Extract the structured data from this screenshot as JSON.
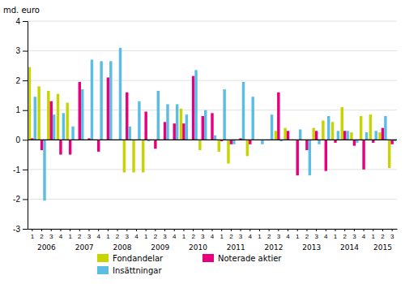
{
  "chart_data": {
    "type": "bar",
    "ylabel": "md. euro",
    "categories": [
      "1",
      "2",
      "3",
      "4",
      "1",
      "2",
      "3",
      "4",
      "1",
      "2",
      "3",
      "4",
      "1",
      "2",
      "3",
      "4",
      "1",
      "2",
      "3",
      "4",
      "1",
      "2",
      "3",
      "4",
      "1",
      "2",
      "3",
      "4",
      "1",
      "2",
      "3",
      "4",
      "1",
      "2",
      "3",
      "4",
      "1",
      "2",
      "3"
    ],
    "category_groups": [
      2006,
      2006,
      2006,
      2006,
      2007,
      2007,
      2007,
      2007,
      2008,
      2008,
      2008,
      2008,
      2009,
      2009,
      2009,
      2009,
      2010,
      2010,
      2010,
      2010,
      2011,
      2011,
      2011,
      2011,
      2012,
      2012,
      2012,
      2012,
      2013,
      2013,
      2013,
      2013,
      2014,
      2014,
      2014,
      2014,
      2015,
      2015,
      2015
    ],
    "series": [
      {
        "name": "Fondandelar",
        "color": "#c8d400",
        "values": [
          2.45,
          1.8,
          1.65,
          1.55,
          1.25,
          0.0,
          0.0,
          0.0,
          0.0,
          0.0,
          -1.1,
          -1.1,
          -1.1,
          0.0,
          0.0,
          0.0,
          1.05,
          0.0,
          -0.35,
          0.0,
          -0.4,
          -0.8,
          0.0,
          -0.55,
          0.0,
          0.0,
          0.3,
          0.4,
          0.0,
          0.0,
          0.4,
          0.65,
          0.6,
          1.1,
          0.25,
          0.8,
          0.85,
          0.25,
          -0.95
        ]
      },
      {
        "name": "Noterade aktier",
        "color": "#e6007e",
        "values": [
          0.05,
          -0.35,
          1.3,
          -0.5,
          -0.5,
          1.95,
          0.05,
          -0.4,
          2.1,
          0.0,
          1.6,
          0.0,
          0.95,
          -0.3,
          0.6,
          0.55,
          0.55,
          2.15,
          0.8,
          0.9,
          -0.05,
          -0.15,
          0.05,
          -0.15,
          0.0,
          0.0,
          1.6,
          0.3,
          -1.2,
          -0.35,
          0.3,
          -1.05,
          -0.1,
          0.3,
          -0.2,
          -1.0,
          -0.1,
          0.4,
          -0.15
        ]
      },
      {
        "name": "Insättningar",
        "color": "#5bbde4",
        "values": [
          1.45,
          -2.05,
          0.85,
          0.9,
          0.45,
          1.7,
          2.7,
          2.65,
          2.65,
          3.1,
          0.45,
          1.3,
          -0.05,
          1.65,
          1.2,
          1.2,
          0.85,
          2.35,
          1.0,
          0.15,
          1.7,
          -0.15,
          1.95,
          1.45,
          -0.15,
          0.85,
          -0.05,
          0.0,
          0.35,
          -1.2,
          -0.15,
          0.8,
          0.3,
          0.3,
          -0.1,
          0.25,
          0.3,
          0.8,
          -0.05
        ]
      }
    ],
    "ylim": [
      -3,
      4
    ],
    "yticks": [
      -3,
      -2,
      -1,
      0,
      1,
      2,
      3,
      4
    ],
    "grid": true,
    "legend": "bottom"
  }
}
